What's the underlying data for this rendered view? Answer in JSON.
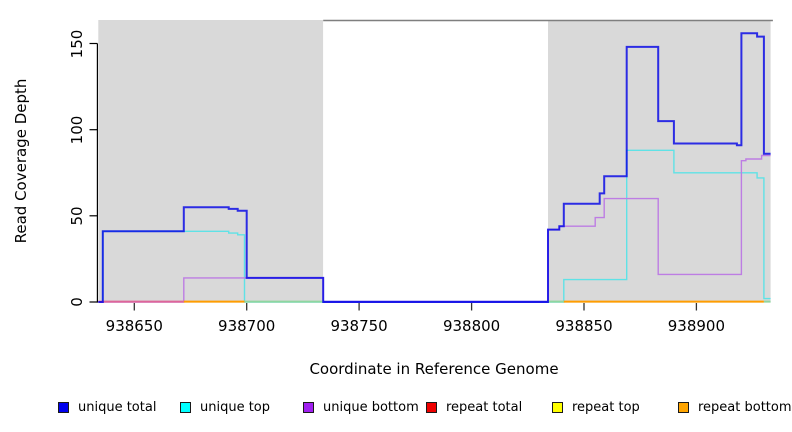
{
  "figure": {
    "bg": "#ffffff",
    "plot_bg_shaded": "#d9d9d9"
  },
  "axes": {
    "x": {
      "label": "Coordinate in Reference Genome",
      "ticks": [
        938650,
        938700,
        938750,
        938800,
        938850,
        938900
      ]
    },
    "y": {
      "label": "Read Coverage Depth",
      "ticks": [
        0,
        50,
        100,
        150
      ]
    }
  },
  "chart_data": {
    "type": "line",
    "step": true,
    "title": "",
    "xlabel": "Coordinate in Reference Genome",
    "ylabel": "Read Coverage Depth",
    "x_range": [
      938634,
      938933
    ],
    "y_range": [
      0,
      163.5
    ],
    "grid": false,
    "legend_position": "bottom",
    "shaded_regions": [
      {
        "from": 938634,
        "to": 938734,
        "color": "#d9d9d9"
      },
      {
        "from": 938834,
        "to": 938933,
        "color": "#d9d9d9"
      }
    ],
    "top_border": {
      "from": 938734,
      "to": 938934,
      "color": "#7f7f7f"
    },
    "series": [
      {
        "name": "unique total",
        "color": "#0000e6",
        "opacity": 0.8,
        "width": 2.0,
        "points": [
          [
            938634,
            0
          ],
          [
            938636,
            41
          ],
          [
            938672,
            55
          ],
          [
            938692,
            54
          ],
          [
            938696,
            53
          ],
          [
            938700,
            14
          ],
          [
            938734,
            0
          ],
          [
            938834,
            42
          ],
          [
            938839,
            44
          ],
          [
            938841,
            57
          ],
          [
            938857,
            63
          ],
          [
            938859,
            73
          ],
          [
            938869,
            148
          ],
          [
            938883,
            105
          ],
          [
            938890,
            92
          ],
          [
            938918,
            91
          ],
          [
            938920,
            156
          ],
          [
            938927,
            154
          ],
          [
            938930,
            86
          ],
          [
            938933,
            86
          ]
        ]
      },
      {
        "name": "unique top",
        "color": "#5fe2e6",
        "opacity": 1,
        "width": 1.4,
        "points": [
          [
            938634,
            0
          ],
          [
            938636,
            41
          ],
          [
            938692,
            40
          ],
          [
            938696,
            39
          ],
          [
            938699,
            0
          ],
          [
            938841,
            13
          ],
          [
            938869,
            88
          ],
          [
            938890,
            75
          ],
          [
            938927,
            72
          ],
          [
            938930,
            2
          ],
          [
            938933,
            2
          ]
        ]
      },
      {
        "name": "unique bottom",
        "color": "#bd7de3",
        "opacity": 1,
        "width": 1.4,
        "points": [
          [
            938634,
            0
          ],
          [
            938672,
            14
          ],
          [
            938734,
            0
          ],
          [
            938834,
            42
          ],
          [
            938839,
            44
          ],
          [
            938855,
            49
          ],
          [
            938859,
            60
          ],
          [
            938883,
            16
          ],
          [
            938920,
            82
          ],
          [
            938922,
            83
          ],
          [
            938929,
            85
          ],
          [
            938933,
            85
          ]
        ]
      },
      {
        "name": "repeat total",
        "color": "#ee0000",
        "opacity": 1,
        "width": 1.4,
        "points": [
          [
            938634,
            0
          ],
          [
            938933,
            0
          ]
        ]
      },
      {
        "name": "repeat top",
        "color": "#ffff00",
        "opacity": 1,
        "width": 1.4,
        "points": [
          [
            938634,
            0
          ],
          [
            938933,
            0
          ]
        ]
      },
      {
        "name": "repeat bottom",
        "color": "#ffa500",
        "opacity": 1,
        "width": 1.4,
        "points": [
          [
            938634,
            0
          ],
          [
            938933,
            0
          ]
        ]
      }
    ],
    "baseline_overdraw_segments": [
      {
        "from": 938634,
        "to": 938672,
        "color": "#de6699"
      },
      {
        "from": 938672,
        "to": 938699,
        "color": "#ff9d00"
      },
      {
        "from": 938699,
        "to": 938734,
        "color": "#8fd6a0"
      },
      {
        "from": 938734,
        "to": 938834,
        "color": "#7766ee"
      },
      {
        "from": 938834,
        "to": 938841,
        "color": "#8fd6a0"
      },
      {
        "from": 938841,
        "to": 938930,
        "color": "#ff9d00"
      },
      {
        "from": 938930,
        "to": 938933,
        "color": "#8fd6a0"
      }
    ]
  },
  "legend": {
    "items": [
      {
        "label": "unique total",
        "color": "#0000ee"
      },
      {
        "label": "unique top",
        "color": "#00ffff"
      },
      {
        "label": "unique bottom",
        "color": "#a020f0"
      },
      {
        "label": "repeat total",
        "color": "#ee0000"
      },
      {
        "label": "repeat top",
        "color": "#ffff00"
      },
      {
        "label": "repeat bottom",
        "color": "#ffa500"
      }
    ]
  }
}
